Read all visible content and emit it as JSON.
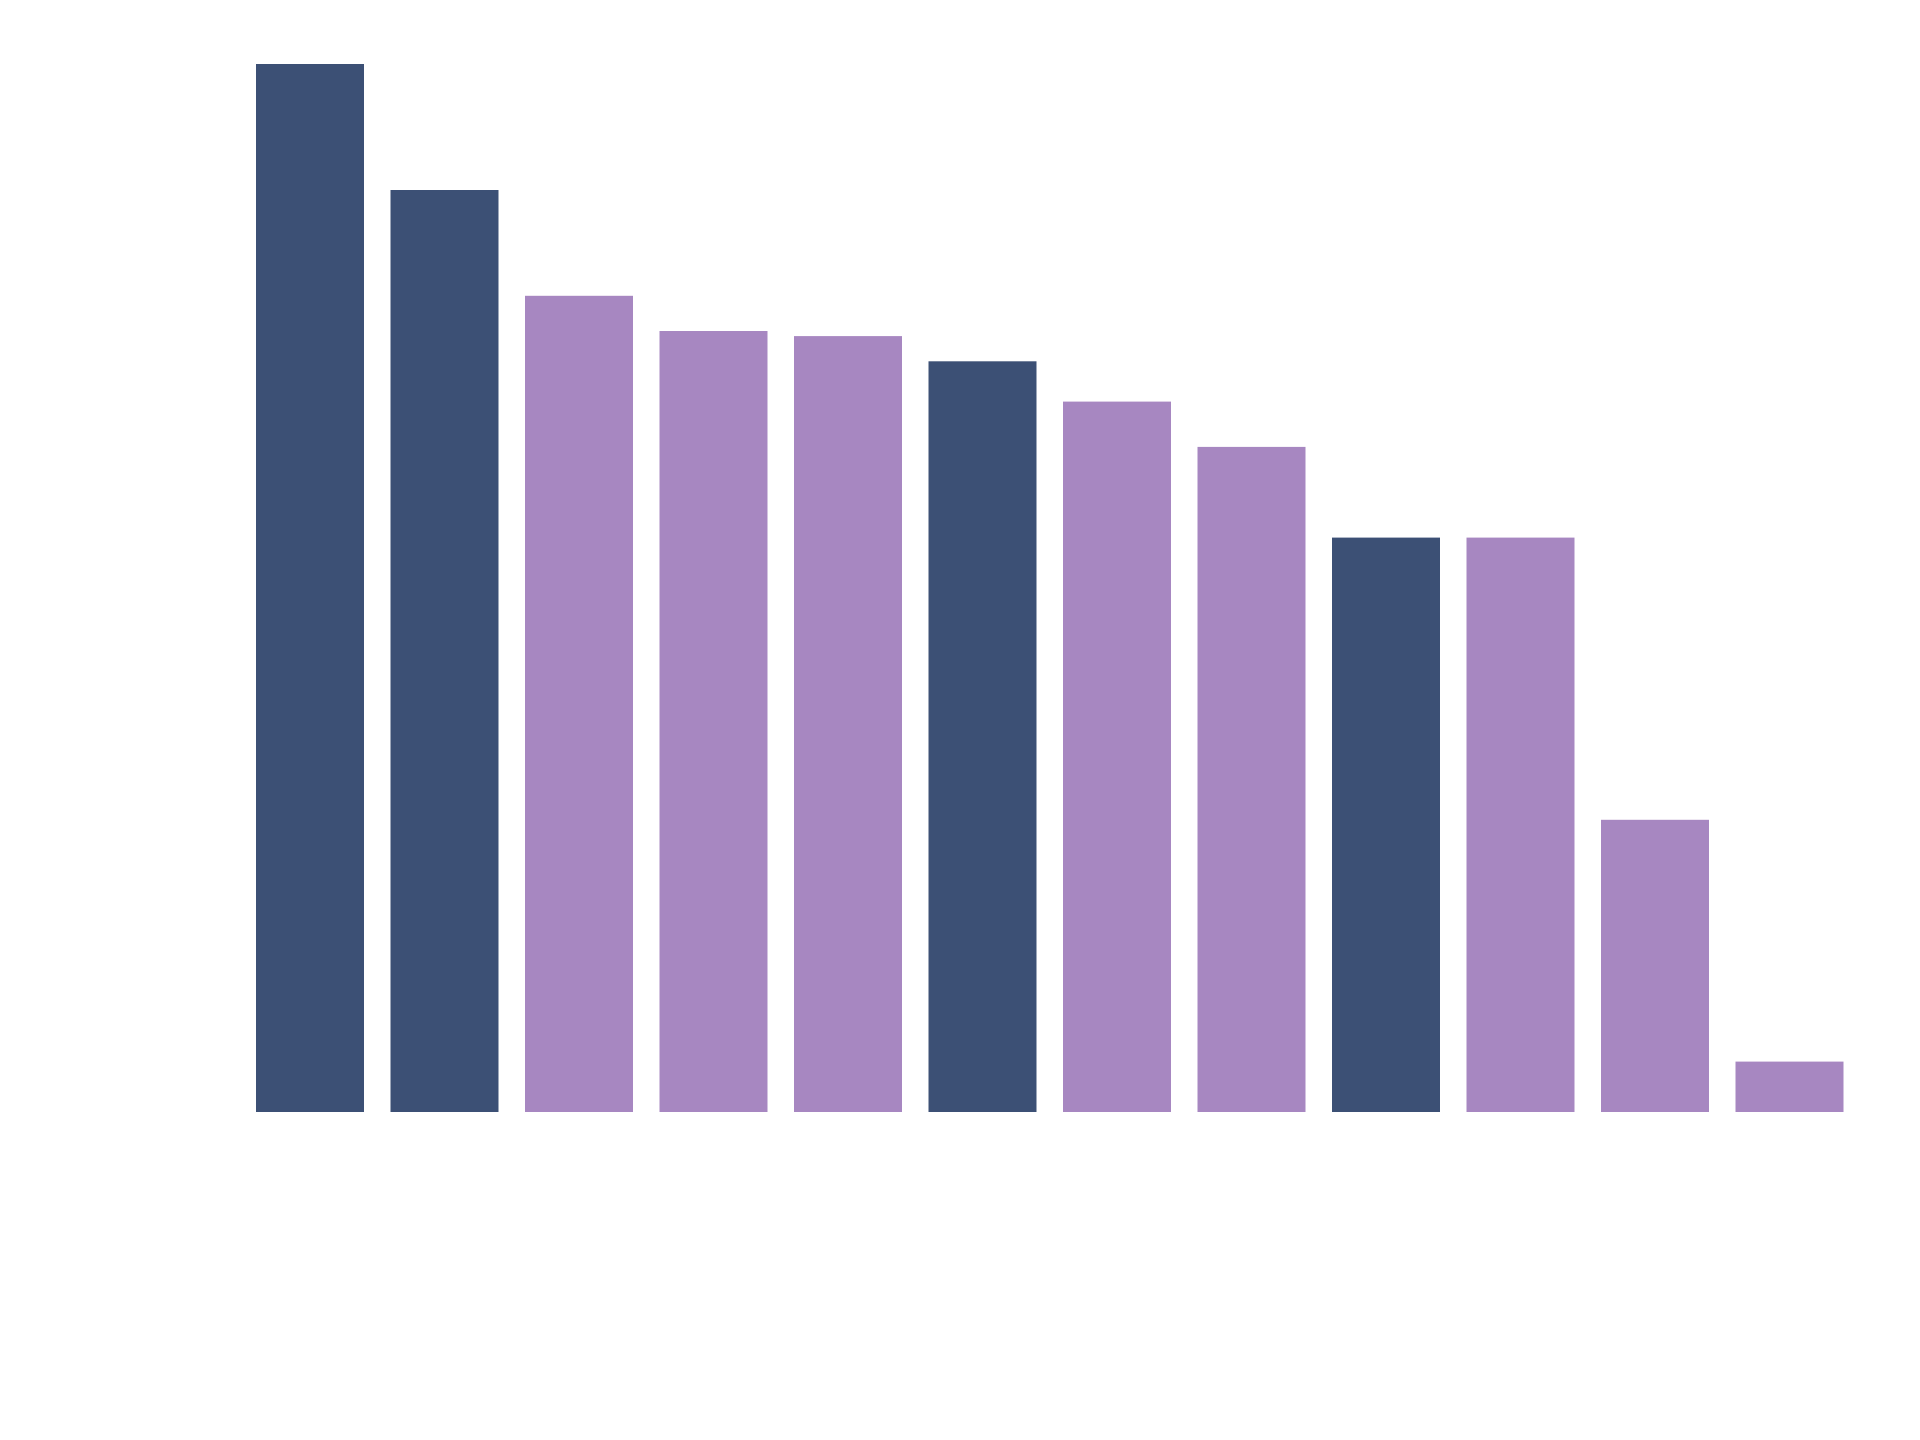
{
  "chart_data": {
    "type": "bar",
    "categories": [
      "",
      "",
      "",
      "",
      "",
      "",
      "",
      "",
      "",
      "",
      "",
      ""
    ],
    "values": [
      1.04,
      0.915,
      0.81,
      0.775,
      0.77,
      0.745,
      0.705,
      0.66,
      0.57,
      0.57,
      0.29,
      0.05
    ],
    "series_colors": [
      "#3c5075",
      "#3c5075",
      "#a787c1",
      "#a787c1",
      "#a787c1",
      "#3c5075",
      "#a787c1",
      "#a787c1",
      "#3c5075",
      "#a787c1",
      "#a787c1",
      "#a787c1"
    ],
    "palette": {
      "dark": "#3c5075",
      "light": "#a787c1"
    },
    "ylim": [
      0,
      1.04
    ],
    "title": "",
    "xlabel": "",
    "ylabel": "",
    "grid": false,
    "legend": "none"
  }
}
